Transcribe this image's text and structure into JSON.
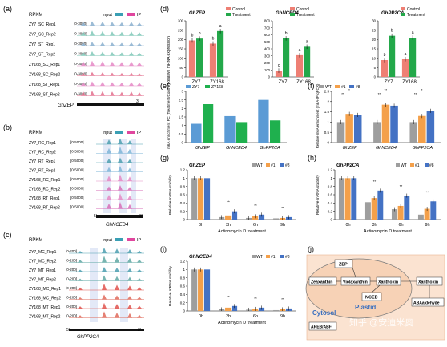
{
  "colors": {
    "control": "#ee7f74",
    "treatment": "#23a84a",
    "zy7": "#5b9bd5",
    "zy168": "#1fb04e",
    "wt": "#9e9e9e",
    "l1": "#f4a04a",
    "l8": "#4472c4",
    "input": "#3a9fb4",
    "ip": "#e0469e",
    "trackA": "#8bb0cf",
    "trackA2": "#80c8b8",
    "trackB": "#e58ac6",
    "trackC1": "#4d9fb0",
    "trackC2": "#e0534d",
    "shade": "#c7d3f0",
    "plastid": "#f7c9a8"
  },
  "panel_a": {
    "label": "(a)",
    "rpkm": "RPKM",
    "legend": [
      "input",
      "IP"
    ],
    "tracks": [
      "ZY7_SC_Rep1",
      "ZY7_SC_Rep2",
      "ZY7_ST_Rep1",
      "ZY7_ST_Rep2",
      "ZY168_SC_Rep1",
      "ZY168_SC_Rep2",
      "ZY168_ST_Rep1",
      "ZY168_ST_Rep2"
    ],
    "scales": [
      "[0-3000]",
      "[0-3000]",
      "[0-3000]",
      "[0-3000]",
      "[0-3000]",
      "[0-3000]",
      "[0-3000]",
      "[0-3000]"
    ],
    "gene": "GhZEP",
    "end3": "3'"
  },
  "panel_b": {
    "label": "(b)",
    "rpkm": "RPKM",
    "legend": [
      "input",
      "IP"
    ],
    "tracks": [
      "ZY7_RC_Rep1",
      "ZY7_RC_Rep2",
      "ZY7_RT_Rep1",
      "ZY7_RT_Rep2",
      "ZY168_RC_Rep1",
      "ZY168_RC_Rep2",
      "ZY168_RT_Rep1",
      "ZY168_RT_Rep2"
    ],
    "scales": [
      "[0-5000]",
      "[0-5000]",
      "[0-5000]",
      "[0-5000]",
      "[0-5000]",
      "[0-5000]",
      "[0-5000]",
      "[0-5000]"
    ],
    "gene": "GhNCED4",
    "end5": "5'",
    "end3": "3'"
  },
  "panel_c": {
    "label": "(c)",
    "rpkm": "RPKM",
    "legend": [
      "input",
      "IP"
    ],
    "tracks": [
      "ZY7_MC_Rep1",
      "ZY7_MC_Rep2",
      "ZY7_MT_Rep1",
      "ZY7_MT_Rep2",
      "ZY168_MC_Rep1",
      "ZY168_MC_Rep2",
      "ZY168_MT_Rep1",
      "ZY168_MT_Rep2"
    ],
    "scales": [
      "[0-200]",
      "[0-200]",
      "[0-200]",
      "[0-200]",
      "[0-200]",
      "[0-200]",
      "[0-200]",
      "[0-200]"
    ],
    "gene": "GhPP2CA",
    "end5": "5'",
    "end3": "3'"
  },
  "chart_data": [
    {
      "panel": "(d)",
      "type": "bar",
      "ylabel": "Relative mRNA expression",
      "legend": [
        "Control",
        "Treatment"
      ],
      "subplots": [
        {
          "title": "GhZEP",
          "categories": [
            "ZY7",
            "ZY168"
          ],
          "ylim": [
            0,
            300
          ],
          "ticks": [
            0,
            50,
            100,
            150,
            200,
            250,
            300
          ],
          "series": [
            {
              "name": "Control",
              "values": [
                195,
                178
              ]
            },
            {
              "name": "Treatment",
              "values": [
                205,
                245
              ]
            }
          ],
          "letters": [
            [
              "b",
              "b"
            ],
            [
              "b",
              "a"
            ]
          ]
        },
        {
          "title": "GhNCED4",
          "categories": [
            "ZY7",
            "ZY168"
          ],
          "ylim": [
            0,
            800
          ],
          "ticks": [
            0,
            100,
            200,
            300,
            400,
            500,
            600,
            700,
            800
          ],
          "series": [
            {
              "name": "Control",
              "values": [
                90,
                310
              ]
            },
            {
              "name": "Treatment",
              "values": [
                550,
                430
              ]
            }
          ],
          "letters": [
            [
              "c",
              "a"
            ],
            [
              "b",
              "a"
            ]
          ]
        },
        {
          "title": "GhPP2CA",
          "categories": [
            "ZY7",
            "ZY168"
          ],
          "ylim": [
            0,
            30
          ],
          "ticks": [
            0,
            5,
            10,
            15,
            20,
            25,
            30
          ],
          "series": [
            {
              "name": "Control",
              "values": [
                9,
                9.5
              ]
            },
            {
              "name": "Treatment",
              "values": [
                22,
                21
              ]
            }
          ],
          "letters": [
            [
              "b",
              "a"
            ],
            [
              "b",
              "a"
            ]
          ]
        }
      ]
    },
    {
      "panel": "(e)",
      "type": "bar",
      "ylabel": "m6A enrichment FC (Treatment/Control)",
      "legend": [
        "ZY7",
        "ZY168"
      ],
      "categories": [
        "GhZEP",
        "GhNCED4",
        "GhPP2CA"
      ],
      "ylim": [
        0,
        3
      ],
      "ticks": [
        0,
        0.5,
        1,
        1.5,
        2,
        2.5,
        3
      ],
      "series": [
        {
          "name": "ZY7",
          "values": [
            1.1,
            1.55,
            2.5
          ]
        },
        {
          "name": "ZY168",
          "values": [
            2.25,
            1.2,
            1.3
          ]
        }
      ]
    },
    {
      "panel": "(f)",
      "type": "bar",
      "ylabel": "Relative m6A enrichment (m6A-IP-qPCR)",
      "legend": [
        "WT",
        "#1",
        "#8"
      ],
      "categories": [
        "GhZEP",
        "GhNCED4",
        "GhPP2CA"
      ],
      "ylim": [
        0,
        2.5
      ],
      "ticks": [
        0,
        0.5,
        1,
        1.5,
        2,
        2.5
      ],
      "series": [
        {
          "name": "WT",
          "values": [
            1.0,
            1.0,
            1.0
          ]
        },
        {
          "name": "#1",
          "values": [
            1.4,
            1.85,
            1.3
          ]
        },
        {
          "name": "#8",
          "values": [
            1.35,
            1.8,
            1.55
          ]
        }
      ],
      "sig": [
        "**",
        "*",
        "**",
        "**",
        "**",
        "*"
      ]
    },
    {
      "panel": "(g)",
      "type": "bar",
      "title": "GhZEP",
      "ylabel": "Relative mRNA stability",
      "xlabel": "Actinomycin D treatment",
      "legend": [
        "WT",
        "#1",
        "#8"
      ],
      "categories": [
        "0h",
        "3h",
        "6h",
        "9h"
      ],
      "ylim": [
        0,
        1.2
      ],
      "ticks": [
        0,
        0.2,
        0.4,
        0.6,
        0.8,
        1,
        1.2
      ],
      "series": [
        {
          "name": "WT",
          "values": [
            1.0,
            0.06,
            0.04,
            0.03
          ]
        },
        {
          "name": "#1",
          "values": [
            1.0,
            0.1,
            0.08,
            0.04
          ]
        },
        {
          "name": "#8",
          "values": [
            1.0,
            0.2,
            0.12,
            0.06
          ]
        }
      ],
      "sig": [
        "**",
        "**",
        "**",
        "**",
        "**",
        "**"
      ]
    },
    {
      "panel": "(h)",
      "type": "bar",
      "title": "GhPP2CA",
      "ylabel": "Relative mRNA stability",
      "xlabel": "Actinomycin D treatment",
      "legend": [
        "WT",
        "#1",
        "#8"
      ],
      "categories": [
        "0h",
        "3h",
        "6h",
        "9h"
      ],
      "ylim": [
        0,
        1.2
      ],
      "ticks": [
        0,
        0.2,
        0.4,
        0.6,
        0.8,
        1,
        1.2
      ],
      "series": [
        {
          "name": "WT",
          "values": [
            1.0,
            0.42,
            0.25,
            0.12
          ]
        },
        {
          "name": "#1",
          "values": [
            1.0,
            0.52,
            0.33,
            0.26
          ]
        },
        {
          "name": "#8",
          "values": [
            1.0,
            0.7,
            0.58,
            0.44
          ]
        }
      ],
      "sig": [
        "**",
        "**",
        "**",
        "**",
        "**",
        "**"
      ]
    },
    {
      "panel": "(i)",
      "type": "bar",
      "title": "GhNCED4",
      "ylabel": "Relative mRNA stability",
      "xlabel": "Actinomycin D treatment",
      "legend": [
        "WT",
        "#1",
        "#8"
      ],
      "categories": [
        "0h",
        "3h",
        "6h",
        "9h"
      ],
      "ylim": [
        0,
        1.2
      ],
      "ticks": [
        0,
        0.2,
        0.4,
        0.6,
        0.8,
        1,
        1.2
      ],
      "series": [
        {
          "name": "WT",
          "values": [
            1.0,
            0.04,
            0.03,
            0.02
          ]
        },
        {
          "name": "#1",
          "values": [
            1.0,
            0.08,
            0.05,
            0.04
          ]
        },
        {
          "name": "#8",
          "values": [
            1.0,
            0.12,
            0.08,
            0.06
          ]
        }
      ],
      "sig": [
        "**",
        "**",
        "**",
        "**",
        "**",
        "**"
      ]
    }
  ],
  "panel_j": {
    "label": "(j)",
    "nodes": {
      "zep": "ZEP",
      "zeaxanthin": "Zeaxanthin",
      "violaxanthin": "Violaxanthin",
      "xanthoxin1": "Xanthoxin",
      "nced": "NCED",
      "xanthoxin2": "Xanthoxin",
      "aba": "ABAaldehyde",
      "areb": "AREB/ABF"
    },
    "plastid": "Plastid",
    "cytosol": "Cytosol"
  },
  "watermark": "知乎 @安迪米奥"
}
